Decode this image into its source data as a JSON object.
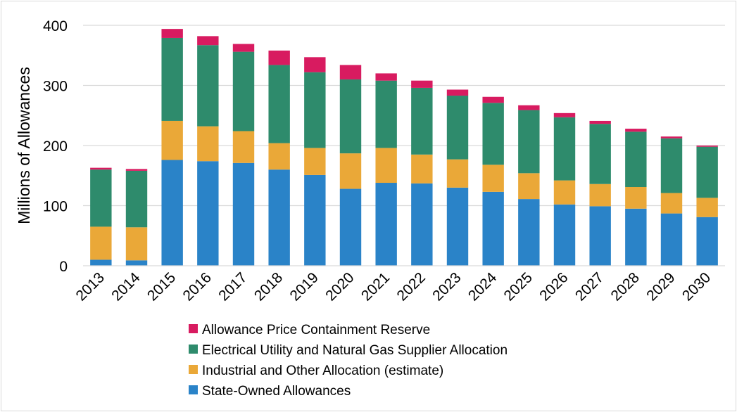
{
  "chart_data": {
    "type": "bar",
    "stacked": true,
    "title": "",
    "xlabel": "",
    "ylabel": "Millions of Allowances",
    "ylim": [
      0,
      400
    ],
    "yticks": [
      0,
      100,
      200,
      300,
      400
    ],
    "grid": true,
    "legend_position": "bottom",
    "categories": [
      "2013",
      "2014",
      "2015",
      "2016",
      "2017",
      "2018",
      "2019",
      "2020",
      "2021",
      "2022",
      "2023",
      "2024",
      "2025",
      "2026",
      "2027",
      "2028",
      "2029",
      "2030"
    ],
    "series": [
      {
        "name": "State-Owned Allowances",
        "color": "#2a83c8",
        "values": [
          10,
          9,
          176,
          174,
          171,
          160,
          151,
          128,
          138,
          137,
          130,
          123,
          111,
          102,
          99,
          95,
          87,
          81
        ]
      },
      {
        "name": "Industrial and Other Allocation (estimate)",
        "color": "#eaa838",
        "values": [
          55,
          55,
          65,
          58,
          53,
          44,
          45,
          59,
          58,
          48,
          47,
          45,
          43,
          40,
          37,
          36,
          34,
          32
        ]
      },
      {
        "name": "Electrical Utility and Natural Gas Supplier Allocation",
        "color": "#2e8b6c",
        "values": [
          95,
          94,
          138,
          135,
          132,
          130,
          126,
          123,
          112,
          111,
          106,
          103,
          105,
          105,
          100,
          92,
          91,
          85
        ]
      },
      {
        "name": "Allowance Price Containment Reserve",
        "color": "#d81b60",
        "values": [
          3,
          3,
          15,
          15,
          13,
          24,
          25,
          24,
          12,
          12,
          10,
          10,
          8,
          7,
          5,
          5,
          3,
          2
        ]
      }
    ],
    "legend_order": [
      "Allowance Price Containment Reserve",
      "Electrical Utility and Natural Gas Supplier Allocation",
      "Industrial and Other Allocation (estimate)",
      "State-Owned Allowances"
    ]
  }
}
